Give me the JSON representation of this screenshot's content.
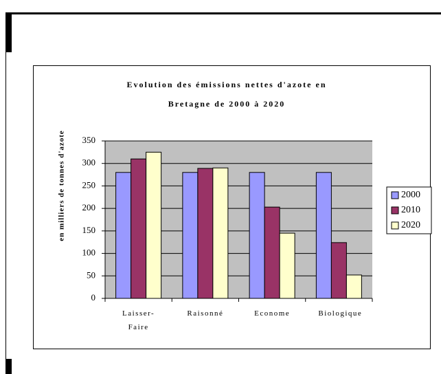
{
  "chart_data": {
    "type": "bar",
    "title": [
      "Evolution des émissions nettes d'azote en",
      "Bretagne de 2000 à 2020"
    ],
    "y_label": "en milliers de tonnes d'azote",
    "categories": [
      "Laisser-Faire",
      "Raisonné",
      "Econome",
      "Biologique"
    ],
    "series": [
      {
        "name": "2000",
        "color": "#9999ff",
        "values": [
          280,
          280,
          280,
          280
        ]
      },
      {
        "name": "2010",
        "color": "#993366",
        "values": [
          310,
          289,
          203,
          124
        ]
      },
      {
        "name": "2020",
        "color": "#ffffcc",
        "values": [
          325,
          290,
          145,
          52
        ]
      }
    ],
    "ylim": [
      0,
      350
    ],
    "yticks": [
      0,
      50,
      100,
      150,
      200,
      250,
      300,
      350
    ],
    "grid": true,
    "legend": "right"
  }
}
